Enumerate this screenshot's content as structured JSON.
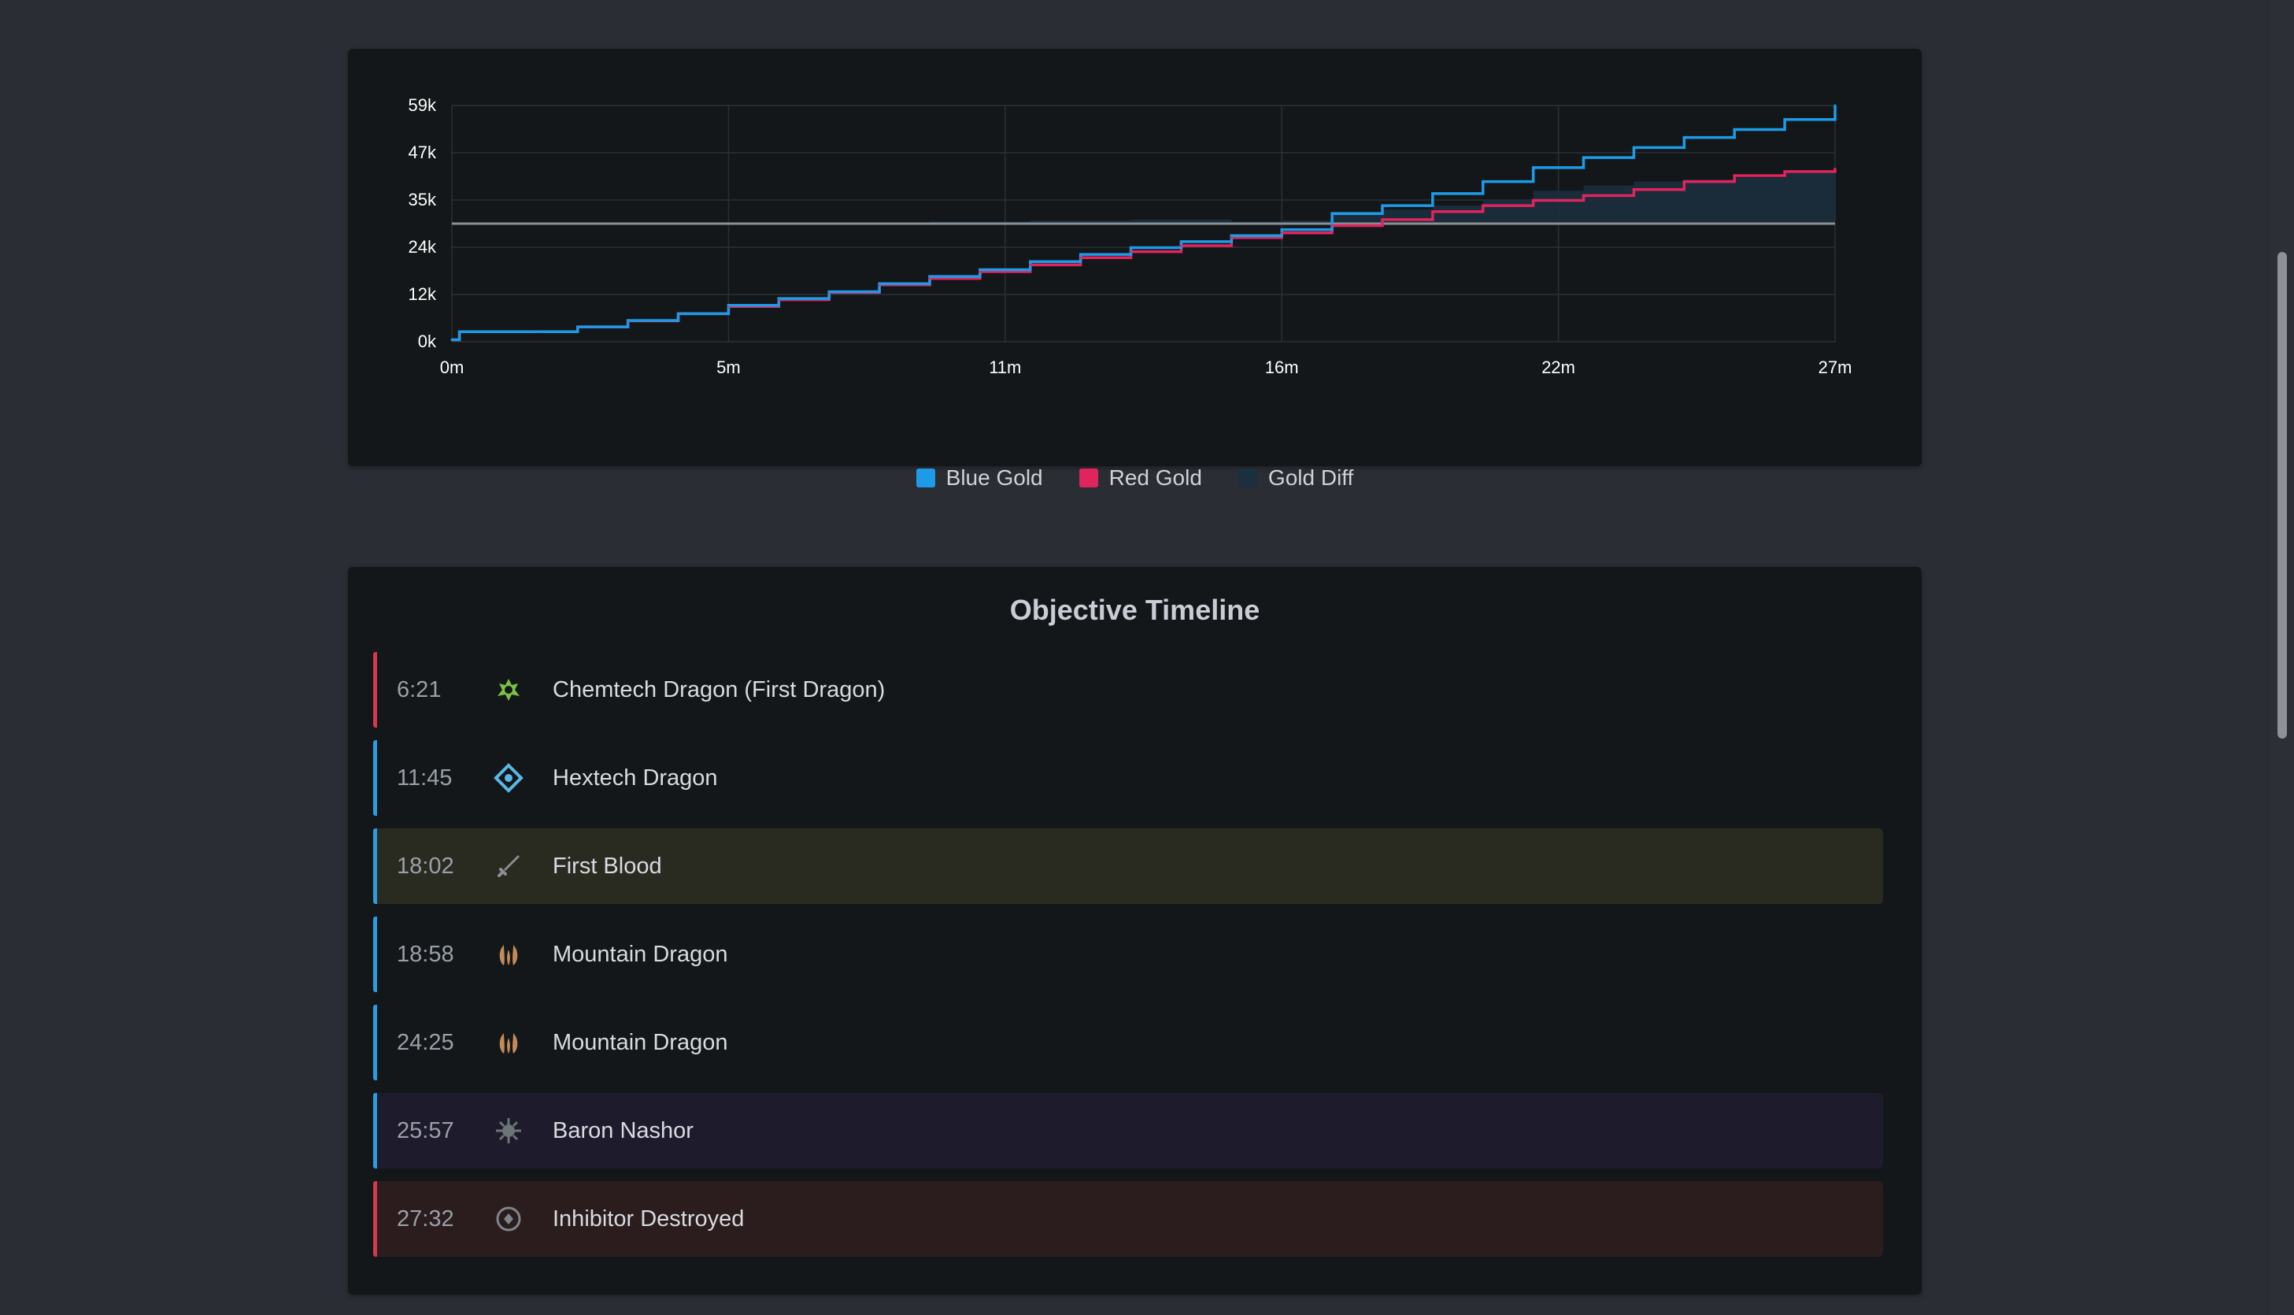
{
  "gold_chart": {
    "legend": [
      {
        "label": "Blue Gold",
        "color": "#1e9be8"
      },
      {
        "label": "Red Gold",
        "color": "#e0245e"
      },
      {
        "label": "Gold Diff",
        "color": "#1c2f3e"
      }
    ]
  },
  "chart_data": {
    "type": "line",
    "title": "",
    "xlabel": "",
    "ylabel": "",
    "x_ticks": [
      "0m",
      "5m",
      "11m",
      "16m",
      "22m",
      "27m"
    ],
    "y_ticks": [
      "0k",
      "12k",
      "24k",
      "35k",
      "47k",
      "59k"
    ],
    "xlim": [
      0,
      27.5
    ],
    "ylim": [
      0,
      59000
    ],
    "grid": true,
    "legend_position": "bottom",
    "x": [
      0,
      0.15,
      1.7,
      2.5,
      3.5,
      4.5,
      5.5,
      6.5,
      7.5,
      8.5,
      9.5,
      10.5,
      11.5,
      12.5,
      13.5,
      14.5,
      15.5,
      16.5,
      17.5,
      18.5,
      19.5,
      20.5,
      21.5,
      22.5,
      23.5,
      24.5,
      25.5,
      26.5,
      27.5
    ],
    "series": [
      {
        "name": "Blue Gold",
        "color": "#1e9be8",
        "values": [
          500,
          2500,
          2500,
          3700,
          5300,
          7000,
          9100,
          10800,
          12500,
          14500,
          16300,
          18000,
          20000,
          21800,
          23500,
          25000,
          26500,
          28000,
          32000,
          34000,
          37000,
          40000,
          43500,
          46000,
          48500,
          51000,
          53000,
          55500,
          59000
        ]
      },
      {
        "name": "Red Gold",
        "color": "#e0245e",
        "values": [
          500,
          2500,
          2500,
          3700,
          5200,
          7000,
          8800,
          10500,
          12300,
          14200,
          15800,
          17500,
          19200,
          21000,
          22500,
          24000,
          26000,
          27200,
          29000,
          30500,
          32500,
          34000,
          35300,
          36500,
          38000,
          40000,
          41500,
          42500,
          43200
        ]
      },
      {
        "name": "Gold Diff",
        "color": "#1c2f3e",
        "values": [
          0,
          0,
          0,
          0,
          100,
          0,
          300,
          300,
          200,
          300,
          500,
          500,
          800,
          800,
          1000,
          1000,
          500,
          800,
          3000,
          3500,
          4500,
          6000,
          8200,
          9500,
          10500,
          11000,
          11500,
          13000,
          15800
        ]
      }
    ]
  },
  "timeline": {
    "title": "Objective Timeline",
    "events": [
      {
        "time": "6:21",
        "label": "Chemtech Dragon (First Dragon)",
        "team_color": "#d6384f",
        "bg": "#131719",
        "icon": "chemtech-dragon-icon",
        "icon_color": "#7cc142"
      },
      {
        "time": "11:45",
        "label": "Hextech Dragon",
        "team_color": "#2d9be0",
        "bg": "#131719",
        "icon": "hextech-dragon-icon",
        "icon_color": "#5bb8e6"
      },
      {
        "time": "18:02",
        "label": "First Blood",
        "team_color": "#2d9be0",
        "bg": "#2a2b20",
        "icon": "sword-icon",
        "icon_color": "#8b8f94"
      },
      {
        "time": "18:58",
        "label": "Mountain Dragon",
        "team_color": "#2d9be0",
        "bg": "#131719",
        "icon": "mountain-dragon-icon",
        "icon_color": "#c48a5a"
      },
      {
        "time": "24:25",
        "label": "Mountain Dragon",
        "team_color": "#2d9be0",
        "bg": "#131719",
        "icon": "mountain-dragon-icon",
        "icon_color": "#c48a5a"
      },
      {
        "time": "25:57",
        "label": "Baron Nashor",
        "team_color": "#2d9be0",
        "bg": "#1e1b2d",
        "icon": "baron-nashor-icon",
        "icon_color": "#6f7479"
      },
      {
        "time": "27:32",
        "label": "Inhibitor Destroyed",
        "team_color": "#d6384f",
        "bg": "#2b1c1d",
        "icon": "inhibitor-icon",
        "icon_color": "#80858b"
      }
    ]
  }
}
